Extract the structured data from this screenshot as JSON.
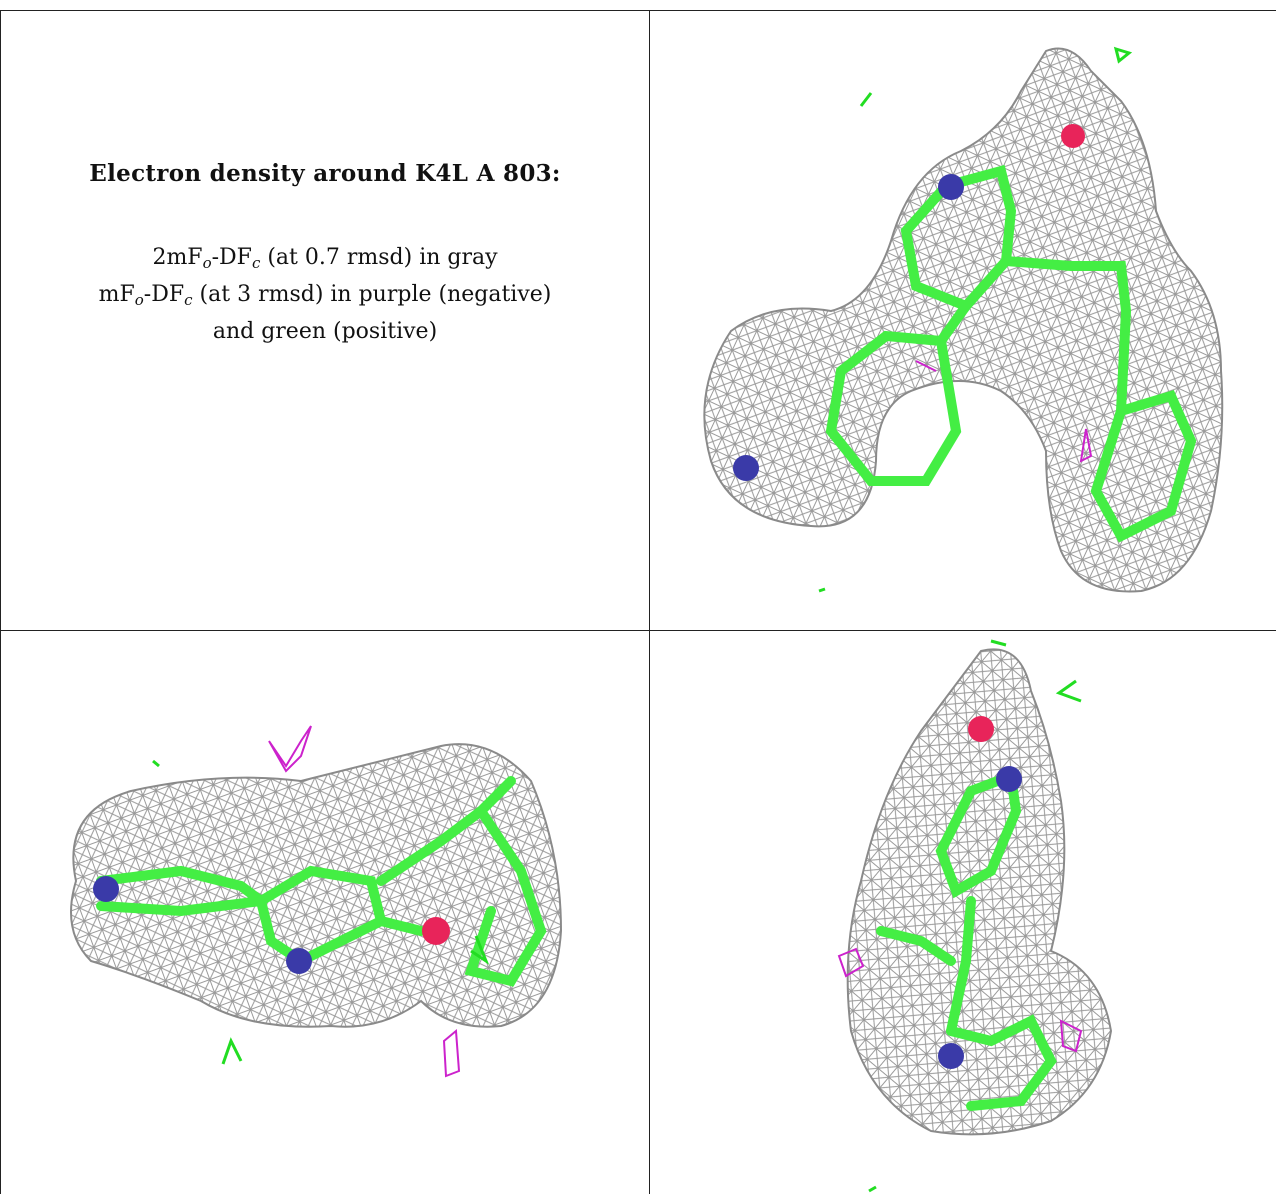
{
  "caption": {
    "title": "Electron density around K4L A 803:",
    "line1": {
      "a": "2mF",
      "b": "o",
      "c": "-DF",
      "d": "c",
      "e": " (at 0.7 rmsd) in gray"
    },
    "line2": {
      "a": "mF",
      "b": "o",
      "c": "-DF",
      "d": "c",
      "e": " (at 3 rmsd) in purple (negative)"
    },
    "line3": "and green (positive)"
  },
  "colors": {
    "mesh": "#9a9a9a",
    "carbon": "#44ee44",
    "nitrogen": "#3a3aa8",
    "oxygen": "#e8245a",
    "negative": "#cc22cc",
    "positive": "#22dd22"
  },
  "panels": [
    {
      "id": "view-1",
      "label": ""
    },
    {
      "id": "view-2",
      "label": ""
    },
    {
      "id": "view-3",
      "label": ""
    }
  ]
}
